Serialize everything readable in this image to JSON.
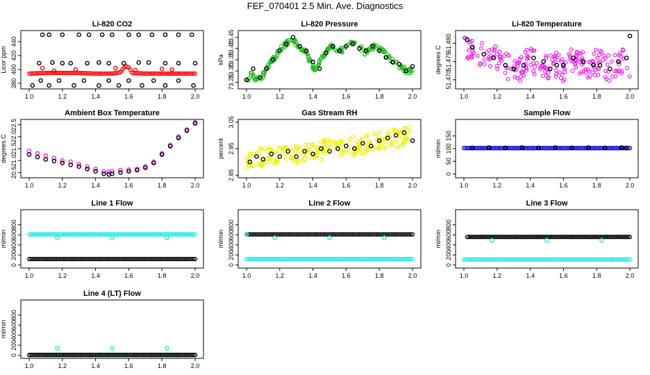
{
  "figure": {
    "title": "FEF_070401  2.5 Min. Ave. Diagnostics"
  },
  "chart_data": [
    {
      "type": "scatter",
      "id": "p1",
      "title": "Li-820 CO2",
      "ylabel": "Licor ppm",
      "xlim": [
        1.0,
        2.0
      ],
      "ylim": [
        372,
        456
      ],
      "xticks": [
        "1.0",
        "1.2",
        "1.4",
        "1.6",
        "1.8",
        "2.0"
      ],
      "yticks": [
        "380",
        "400",
        "420",
        "440"
      ],
      "series": [
        {
          "color": "#ff0000",
          "kind": "band",
          "x": [
            1.0,
            1.1,
            1.2,
            1.3,
            1.4,
            1.5,
            1.55,
            1.58,
            1.6,
            1.62,
            1.7,
            1.8,
            1.9,
            2.0
          ],
          "values": [
            394,
            395,
            395,
            395,
            394,
            394,
            396,
            405,
            403,
            395,
            394,
            394,
            394,
            394
          ]
        },
        {
          "color": "#000000",
          "kind": "scatter",
          "x": [
            1.08,
            1.12,
            1.2,
            1.3,
            1.36,
            1.44,
            1.5,
            1.6,
            1.66,
            1.74,
            1.82,
            1.9,
            1.98
          ],
          "values": [
            450,
            450,
            450,
            450,
            450,
            450,
            450,
            450,
            450,
            450,
            450,
            450,
            450
          ]
        },
        {
          "color": "#000000",
          "kind": "scatter",
          "x": [
            1.06,
            1.14,
            1.2,
            1.25,
            1.35,
            1.42,
            1.48,
            1.57,
            1.66,
            1.72,
            1.82,
            1.9,
            2.0
          ],
          "values": [
            409,
            410,
            409,
            409,
            409,
            410,
            409,
            409,
            410,
            410,
            409,
            409,
            409
          ]
        },
        {
          "color": "#000000",
          "kind": "scatter",
          "x": [
            1.02,
            1.07,
            1.12,
            1.18,
            1.27,
            1.33,
            1.42,
            1.48,
            1.54,
            1.6,
            1.68,
            1.75,
            1.82,
            1.9,
            1.99
          ],
          "values": [
            377,
            384,
            377,
            384,
            377,
            384,
            377,
            384,
            377,
            384,
            377,
            384,
            377,
            384,
            377
          ]
        },
        {
          "color": "#ff0000",
          "kind": "scatter",
          "x": [
            1.08,
            1.15,
            1.28,
            1.52,
            1.64,
            1.8,
            1.86
          ],
          "values": [
            402,
            398,
            400,
            402,
            399,
            401,
            400
          ]
        }
      ]
    },
    {
      "type": "scatter",
      "id": "p2",
      "title": "Li-820 Pressure",
      "ylabel": "kPa",
      "xlim": [
        1.0,
        2.0
      ],
      "ylim": [
        73.22,
        73.48
      ],
      "xticks": [
        "1.0",
        "1.2",
        "1.4",
        "1.6",
        "1.8",
        "2.0"
      ],
      "yticks": [
        "73.25",
        "73.30",
        "73.35",
        "73.40",
        "73.45"
      ],
      "series": [
        {
          "color": "#22bb22",
          "kind": "scatter",
          "jitter": 0.012,
          "x": [
            1.0,
            1.03,
            1.06,
            1.09,
            1.12,
            1.15,
            1.18,
            1.21,
            1.24,
            1.27,
            1.3,
            1.33,
            1.36,
            1.39,
            1.42,
            1.45,
            1.48,
            1.51,
            1.54,
            1.57,
            1.6,
            1.63,
            1.66,
            1.69,
            1.72,
            1.75,
            1.78,
            1.81,
            1.84,
            1.87,
            1.9,
            1.93,
            1.96,
            2.0
          ],
          "values": [
            73.25,
            73.29,
            73.26,
            73.27,
            73.31,
            73.34,
            73.37,
            73.4,
            73.42,
            73.44,
            73.42,
            73.4,
            73.38,
            73.33,
            73.3,
            73.35,
            73.39,
            73.41,
            73.4,
            73.39,
            73.41,
            73.43,
            73.42,
            73.4,
            73.38,
            73.4,
            73.41,
            73.4,
            73.37,
            73.35,
            73.33,
            73.32,
            73.3,
            73.3
          ]
        },
        {
          "color": "#000000",
          "kind": "scatter",
          "x": [
            1.0,
            1.04,
            1.08,
            1.12,
            1.16,
            1.2,
            1.24,
            1.28,
            1.32,
            1.36,
            1.4,
            1.44,
            1.48,
            1.52,
            1.56,
            1.6,
            1.64,
            1.68,
            1.72,
            1.76,
            1.8,
            1.84,
            1.88,
            1.92,
            1.96,
            2.0
          ],
          "values": [
            73.26,
            73.31,
            73.27,
            73.31,
            73.35,
            73.39,
            73.42,
            73.45,
            73.41,
            73.39,
            73.34,
            73.31,
            73.38,
            73.41,
            73.39,
            73.41,
            73.42,
            73.4,
            73.39,
            73.41,
            73.39,
            73.36,
            73.34,
            73.33,
            73.3,
            73.32
          ]
        }
      ]
    },
    {
      "type": "scatter",
      "id": "p3",
      "title": "Li-820 Temperature",
      "ylabel": "degrees C",
      "xlim": [
        1.0,
        2.0
      ],
      "ylim": [
        51.4675,
        51.4835
      ],
      "xticks": [
        "1.0",
        "1.2",
        "1.4",
        "1.6",
        "1.8",
        "2.0"
      ],
      "yticks": [
        "51.470",
        "51.475",
        "51.480"
      ],
      "series": [
        {
          "color": "#ee22ee",
          "kind": "scatter",
          "jitter": 0.0035,
          "x": [
            1.0,
            1.04,
            1.08,
            1.12,
            1.16,
            1.2,
            1.24,
            1.28,
            1.32,
            1.36,
            1.4,
            1.44,
            1.48,
            1.52,
            1.56,
            1.6,
            1.64,
            1.68,
            1.72,
            1.76,
            1.8,
            1.84,
            1.88,
            1.92,
            1.96,
            2.0
          ],
          "values": [
            51.48,
            51.479,
            51.478,
            51.477,
            51.476,
            51.476,
            51.475,
            51.473,
            51.472,
            51.474,
            51.476,
            51.474,
            51.473,
            51.474,
            51.474,
            51.473,
            51.475,
            51.476,
            51.474,
            51.474,
            51.475,
            51.474,
            51.473,
            51.474,
            51.475,
            51.474
          ]
        },
        {
          "color": "#000000",
          "kind": "scatter",
          "x": [
            1.02,
            1.05,
            1.12,
            1.18,
            1.25,
            1.3,
            1.36,
            1.42,
            1.48,
            1.52,
            1.56,
            1.6,
            1.66,
            1.72,
            1.78,
            1.82,
            1.88,
            1.93,
            1.98,
            2.0
          ],
          "values": [
            51.481,
            51.479,
            51.477,
            51.476,
            51.474,
            51.473,
            51.474,
            51.476,
            51.475,
            51.473,
            51.474,
            51.474,
            51.476,
            51.475,
            51.474,
            51.474,
            51.473,
            51.475,
            51.476,
            51.482
          ]
        }
      ]
    },
    {
      "type": "scatter",
      "id": "p4",
      "title": "Ambient Box Temperature",
      "ylabel": "degrees C",
      "xlim": [
        1.0,
        2.0
      ],
      "ylim": [
        20.28,
        22.72
      ],
      "xticks": [
        "1.0",
        "1.2",
        "1.4",
        "1.6",
        "1.8",
        "2.0"
      ],
      "yticks": [
        "20.5",
        "21.0",
        "21.5",
        "22.0",
        "22.5"
      ],
      "series": [
        {
          "color": "#ee22ee",
          "kind": "scatter",
          "x": [
            1.0,
            1.05,
            1.1,
            1.15,
            1.2,
            1.25,
            1.3,
            1.35,
            1.4,
            1.45,
            1.48,
            1.5,
            1.55,
            1.6,
            1.65,
            1.7,
            1.75,
            1.8,
            1.85,
            1.9,
            1.95,
            2.0
          ],
          "values": [
            21.4,
            21.3,
            21.2,
            21.1,
            21.0,
            20.95,
            20.85,
            20.75,
            20.65,
            20.55,
            20.52,
            20.55,
            20.6,
            20.62,
            20.65,
            20.75,
            20.95,
            21.3,
            21.65,
            22.0,
            22.3,
            22.6
          ]
        },
        {
          "color": "#000000",
          "kind": "scatter",
          "x": [
            1.0,
            1.05,
            1.1,
            1.15,
            1.2,
            1.25,
            1.3,
            1.35,
            1.4,
            1.45,
            1.48,
            1.5,
            1.55,
            1.6,
            1.65,
            1.7,
            1.75,
            1.8,
            1.85,
            1.9,
            1.95,
            2.0
          ],
          "values": [
            21.25,
            21.15,
            21.05,
            20.98,
            20.9,
            20.82,
            20.75,
            20.65,
            20.55,
            20.45,
            20.42,
            20.45,
            20.5,
            20.55,
            20.6,
            20.7,
            20.9,
            21.25,
            21.6,
            21.95,
            22.25,
            22.55
          ]
        }
      ]
    },
    {
      "type": "scatter",
      "id": "p5",
      "title": "Gas Stream RH",
      "ylabel": "percent",
      "xlim": [
        1.0,
        2.0
      ],
      "ylim": [
        2.84,
        3.06
      ],
      "xticks": [
        "1.0",
        "1.2",
        "1.4",
        "1.6",
        "1.8",
        "2.0"
      ],
      "yticks": [
        "2.85",
        "2.95",
        "3.05"
      ],
      "series": [
        {
          "color": "#f0f000",
          "kind": "scatter",
          "jitter": 0.035,
          "x": [
            1.0,
            1.04,
            1.08,
            1.12,
            1.16,
            1.2,
            1.24,
            1.28,
            1.32,
            1.36,
            1.4,
            1.44,
            1.48,
            1.52,
            1.56,
            1.6,
            1.64,
            1.68,
            1.72,
            1.76,
            1.8,
            1.84,
            1.88,
            1.92,
            1.96,
            2.0
          ],
          "values": [
            2.91,
            2.91,
            2.92,
            2.92,
            2.92,
            2.93,
            2.93,
            2.93,
            2.93,
            2.94,
            2.94,
            2.94,
            2.95,
            2.95,
            2.95,
            2.96,
            2.96,
            2.96,
            2.97,
            2.97,
            2.98,
            2.98,
            2.99,
            2.99,
            3.0,
            3.0
          ]
        },
        {
          "color": "#000000",
          "kind": "scatter",
          "x": [
            1.02,
            1.06,
            1.1,
            1.15,
            1.2,
            1.25,
            1.3,
            1.35,
            1.4,
            1.45,
            1.5,
            1.55,
            1.6,
            1.65,
            1.7,
            1.75,
            1.8,
            1.85,
            1.9,
            1.95,
            2.0
          ],
          "values": [
            2.9,
            2.92,
            2.91,
            2.93,
            2.92,
            2.94,
            2.92,
            2.94,
            2.93,
            2.95,
            2.94,
            2.95,
            2.96,
            2.95,
            2.97,
            2.96,
            2.98,
            2.99,
            3.0,
            3.01,
            2.98
          ]
        }
      ]
    },
    {
      "type": "scatter",
      "id": "p6",
      "title": "Sample Flow",
      "ylabel": "ml/min",
      "xlim": [
        1.0,
        2.0
      ],
      "ylim": [
        -15,
        215
      ],
      "xticks": [
        "1.0",
        "1.2",
        "1.4",
        "1.6",
        "1.8",
        "2.0"
      ],
      "yticks": [
        "0",
        "50",
        "100",
        "150"
      ],
      "series": [
        {
          "color": "#0000dd",
          "kind": "band",
          "x": [
            1.0,
            2.0
          ],
          "values": [
            102,
            102
          ]
        },
        {
          "color": "#000000",
          "kind": "scatter",
          "x": [
            1.05,
            1.15,
            1.25,
            1.35,
            1.45,
            1.55,
            1.65,
            1.75,
            1.85,
            1.95,
            1.98
          ],
          "values": [
            103,
            104,
            103,
            104,
            103,
            104,
            103,
            104,
            103,
            104,
            103
          ]
        }
      ]
    },
    {
      "type": "scatter",
      "id": "p7",
      "title": "Line 1 Flow",
      "ylabel": "ml/min",
      "xlim": [
        1.0,
        2.0
      ],
      "ylim": [
        -60,
        1100
      ],
      "xticks": [
        "1.0",
        "1.2",
        "1.4",
        "1.6",
        "1.8",
        "2.0"
      ],
      "yticks": [
        "0",
        "200",
        "400",
        "600",
        "800"
      ],
      "series": [
        {
          "color": "#22e8e8",
          "kind": "band",
          "x": [
            1.0,
            2.0
          ],
          "values": [
            610,
            610
          ]
        },
        {
          "color": "#22e8e8",
          "kind": "scatter",
          "x": [
            1.17,
            1.5,
            1.83
          ],
          "values": [
            540,
            540,
            540
          ]
        },
        {
          "color": "#000000",
          "kind": "band",
          "x": [
            1.0,
            2.0
          ],
          "values": [
            120,
            120
          ]
        }
      ]
    },
    {
      "type": "scatter",
      "id": "p8",
      "title": "Line 2 Flow",
      "ylabel": "ml/min",
      "xlim": [
        1.0,
        2.0
      ],
      "ylim": [
        -60,
        1100
      ],
      "xticks": [
        "1.0",
        "1.2",
        "1.4",
        "1.6",
        "1.8",
        "2.0"
      ],
      "yticks": [
        "0",
        "200",
        "400",
        "600",
        "800"
      ],
      "series": [
        {
          "color": "#000000",
          "kind": "band",
          "x": [
            1.0,
            2.0
          ],
          "values": [
            610,
            610
          ]
        },
        {
          "color": "#22e8e8",
          "kind": "scatter",
          "x": [
            1.0,
            1.17,
            1.5,
            1.83
          ],
          "values": [
            610,
            540,
            540,
            540
          ]
        },
        {
          "color": "#22e8e8",
          "kind": "band",
          "x": [
            1.0,
            2.0
          ],
          "values": [
            120,
            120
          ]
        }
      ]
    },
    {
      "type": "scatter",
      "id": "p9",
      "title": "Line 3 Flow",
      "ylabel": "ml/min",
      "xlim": [
        1.0,
        2.0
      ],
      "ylim": [
        -60,
        1100
      ],
      "xticks": [
        "1.0",
        "1.2",
        "1.4",
        "1.6",
        "1.8",
        "2.0"
      ],
      "yticks": [
        "0",
        "200",
        "400",
        "600",
        "800"
      ],
      "series": [
        {
          "color": "#000000",
          "kind": "band",
          "x": [
            1.02,
            2.0
          ],
          "values": [
            560,
            560
          ]
        },
        {
          "color": "#22e8e8",
          "kind": "scatter",
          "x": [
            1.17,
            1.5,
            1.83
          ],
          "values": [
            490,
            490,
            490
          ]
        },
        {
          "color": "#22e8e8",
          "kind": "band",
          "x": [
            1.0,
            2.0
          ],
          "values": [
            110,
            110
          ]
        }
      ]
    },
    {
      "type": "scatter",
      "id": "p10",
      "title": "Line 4 (LT) Flow",
      "ylabel": "ml/min",
      "xlim": [
        1.0,
        2.0
      ],
      "ylim": [
        -60,
        1100
      ],
      "xticks": [
        "1.0",
        "1.2",
        "1.4",
        "1.6",
        "1.8",
        "2.0"
      ],
      "yticks": [
        "0",
        "200",
        "400",
        "600",
        "800"
      ],
      "series": [
        {
          "color": "#22e8e8",
          "kind": "band",
          "x": [
            1.0,
            2.0
          ],
          "values": [
            5,
            5
          ]
        },
        {
          "color": "#000000",
          "kind": "band",
          "x": [
            1.0,
            2.0
          ],
          "values": [
            8,
            8
          ]
        },
        {
          "color": "#22e8e8",
          "kind": "scatter",
          "x": [
            1.17,
            1.5,
            1.83
          ],
          "values": [
            140,
            140,
            140
          ]
        }
      ]
    }
  ]
}
